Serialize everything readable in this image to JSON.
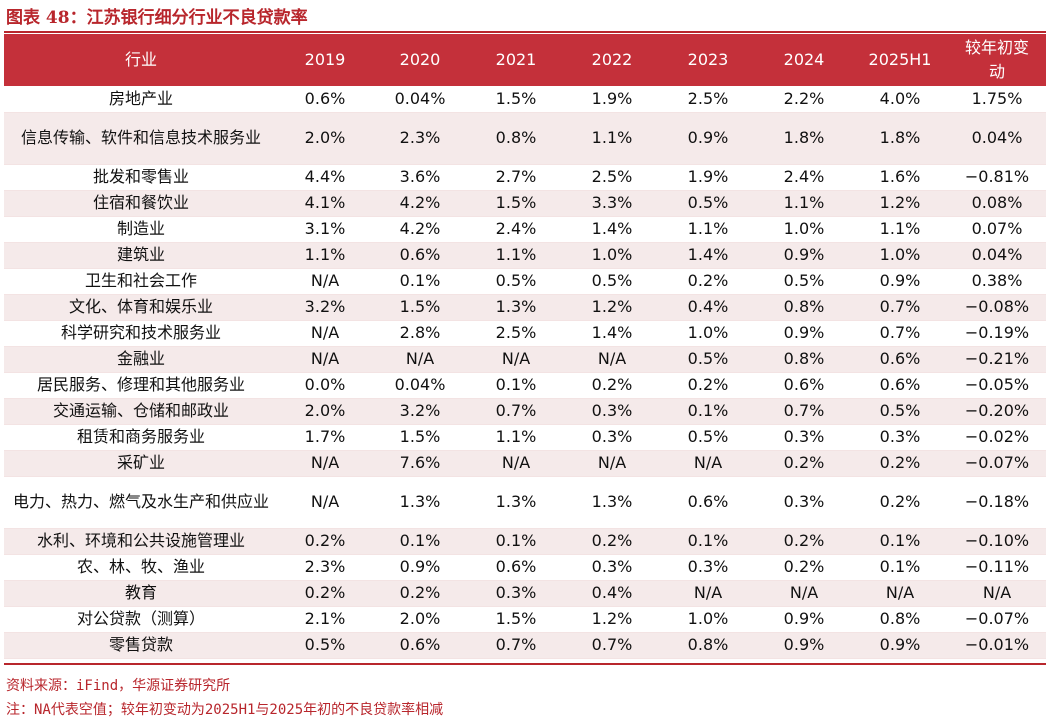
{
  "title": "图表 48：江苏银行细分行业不良贷款率",
  "table": {
    "headers": [
      "行业",
      "2019",
      "2020",
      "2021",
      "2022",
      "2023",
      "2024",
      "2025H1",
      "较年初变动"
    ],
    "rows": [
      [
        "房地产业",
        "0.6%",
        "0.04%",
        "1.5%",
        "1.9%",
        "2.5%",
        "2.2%",
        "4.0%",
        "1.75%"
      ],
      [
        "信息传输、软件和信息技术服务业",
        "2.0%",
        "2.3%",
        "0.8%",
        "1.1%",
        "0.9%",
        "1.8%",
        "1.8%",
        "0.04%"
      ],
      [
        "批发和零售业",
        "4.4%",
        "3.6%",
        "2.7%",
        "2.5%",
        "1.9%",
        "2.4%",
        "1.6%",
        "−0.81%"
      ],
      [
        "住宿和餐饮业",
        "4.1%",
        "4.2%",
        "1.5%",
        "3.3%",
        "0.5%",
        "1.1%",
        "1.2%",
        "0.08%"
      ],
      [
        "制造业",
        "3.1%",
        "4.2%",
        "2.4%",
        "1.4%",
        "1.1%",
        "1.0%",
        "1.1%",
        "0.07%"
      ],
      [
        "建筑业",
        "1.1%",
        "0.6%",
        "1.1%",
        "1.0%",
        "1.4%",
        "0.9%",
        "1.0%",
        "0.04%"
      ],
      [
        "卫生和社会工作",
        "N/A",
        "0.1%",
        "0.5%",
        "0.5%",
        "0.2%",
        "0.5%",
        "0.9%",
        "0.38%"
      ],
      [
        "文化、体育和娱乐业",
        "3.2%",
        "1.5%",
        "1.3%",
        "1.2%",
        "0.4%",
        "0.8%",
        "0.7%",
        "−0.08%"
      ],
      [
        "科学研究和技术服务业",
        "N/A",
        "2.8%",
        "2.5%",
        "1.4%",
        "1.0%",
        "0.9%",
        "0.7%",
        "−0.19%"
      ],
      [
        "金融业",
        "N/A",
        "N/A",
        "N/A",
        "N/A",
        "0.5%",
        "0.8%",
        "0.6%",
        "−0.21%"
      ],
      [
        "居民服务、修理和其他服务业",
        "0.0%",
        "0.04%",
        "0.1%",
        "0.2%",
        "0.2%",
        "0.6%",
        "0.6%",
        "−0.05%"
      ],
      [
        "交通运输、仓储和邮政业",
        "2.0%",
        "3.2%",
        "0.7%",
        "0.3%",
        "0.1%",
        "0.7%",
        "0.5%",
        "−0.20%"
      ],
      [
        "租赁和商务服务业",
        "1.7%",
        "1.5%",
        "1.1%",
        "0.3%",
        "0.5%",
        "0.3%",
        "0.3%",
        "−0.02%"
      ],
      [
        "采矿业",
        "N/A",
        "7.6%",
        "N/A",
        "N/A",
        "N/A",
        "0.2%",
        "0.2%",
        "−0.07%"
      ],
      [
        "电力、热力、燃气及水生产和供应业",
        "N/A",
        "1.3%",
        "1.3%",
        "1.3%",
        "0.6%",
        "0.3%",
        "0.2%",
        "−0.18%"
      ],
      [
        "水利、环境和公共设施管理业",
        "0.2%",
        "0.1%",
        "0.1%",
        "0.2%",
        "0.1%",
        "0.2%",
        "0.1%",
        "−0.10%"
      ],
      [
        "农、林、牧、渔业",
        "2.3%",
        "0.9%",
        "0.6%",
        "0.3%",
        "0.3%",
        "0.2%",
        "0.1%",
        "−0.11%"
      ],
      [
        "教育",
        "0.2%",
        "0.2%",
        "0.3%",
        "0.4%",
        "N/A",
        "N/A",
        "N/A",
        "N/A"
      ],
      [
        "对公贷款（测算）",
        "2.1%",
        "2.0%",
        "1.5%",
        "1.2%",
        "1.0%",
        "0.9%",
        "0.8%",
        "−0.07%"
      ],
      [
        "零售贷款",
        "0.5%",
        "0.6%",
        "0.7%",
        "0.7%",
        "0.8%",
        "0.9%",
        "0.9%",
        "−0.01%"
      ]
    ]
  },
  "source": "资料来源：iFind，华源证券研究所",
  "note": "注：NA代表空值；较年初变动为2025H1与2025年初的不良贷款率相减",
  "colors": {
    "accent": "#c4303a",
    "stripe": "#f5eaea",
    "title": "#b8262c"
  }
}
